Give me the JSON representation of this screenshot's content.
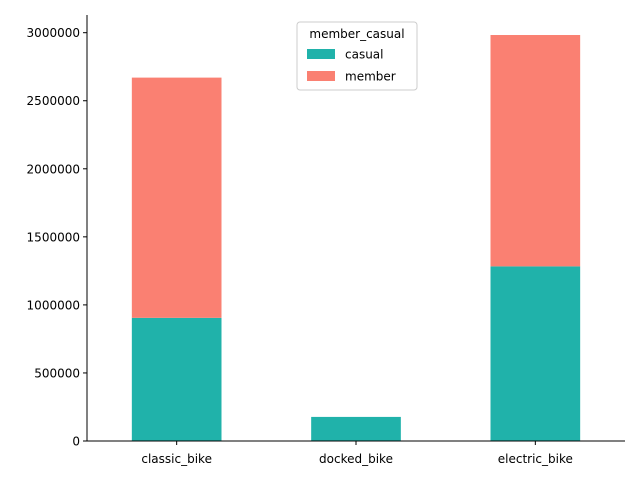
{
  "chart_data": {
    "type": "bar",
    "stacked": true,
    "categories": [
      "classic_bike",
      "docked_bike",
      "electric_bike"
    ],
    "series": [
      {
        "name": "casual",
        "color": "#20b2aa",
        "values": [
          905000,
          177000,
          1283000
        ]
      },
      {
        "name": "member",
        "color": "#fa8072",
        "values": [
          1765000,
          0,
          1700000
        ]
      }
    ],
    "title": "",
    "xlabel": "",
    "ylabel": "",
    "ylim": [
      0,
      3130000
    ],
    "yticks": [
      0,
      500000,
      1000000,
      1500000,
      2000000,
      2500000,
      3000000
    ],
    "ytick_labels": [
      "0",
      "500000",
      "1000000",
      "1500000",
      "2000000",
      "2500000",
      "3000000"
    ],
    "grid": false,
    "legend": {
      "title": "member_casual",
      "placement": "top-center"
    }
  }
}
